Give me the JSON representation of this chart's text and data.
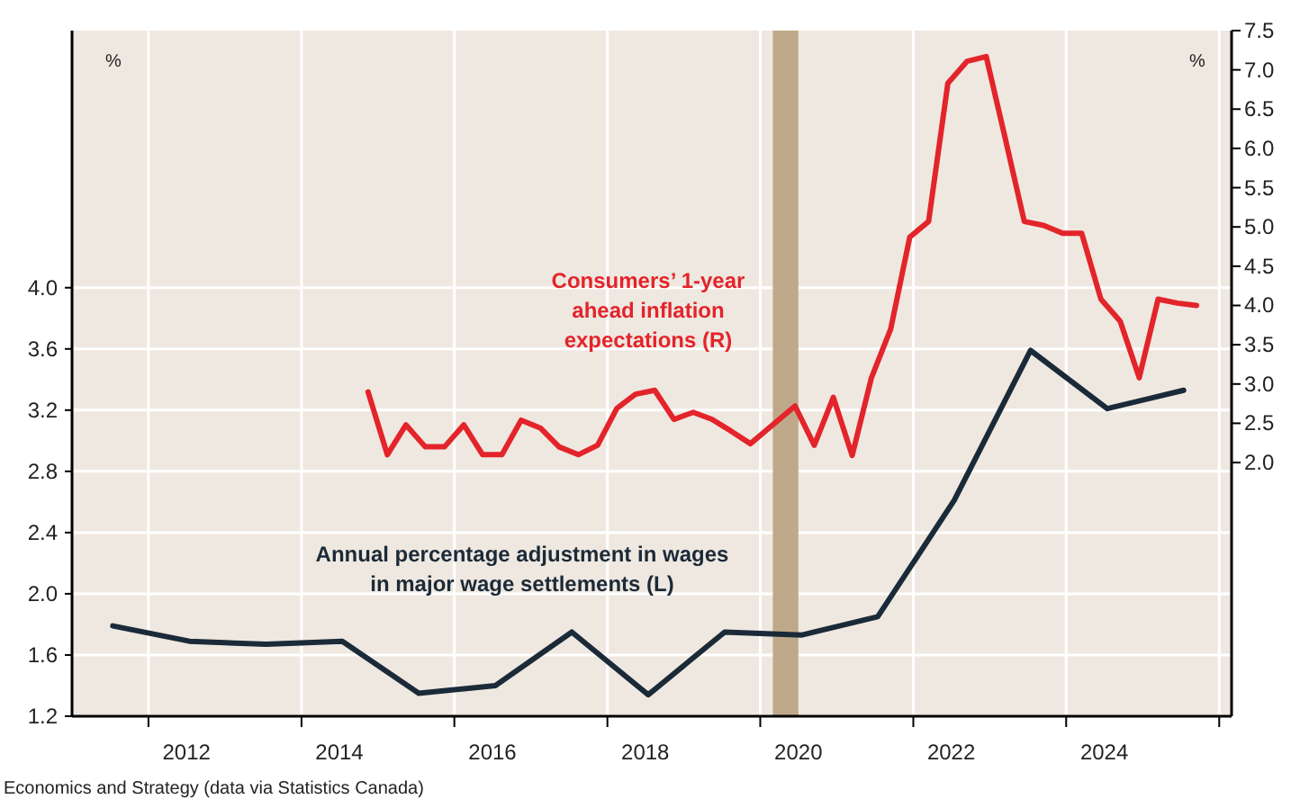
{
  "chart_data": {
    "type": "line",
    "ylabel": "%",
    "y2label": "%",
    "annotations": [
      "Economics and Strategy (data via Statistics Canada)"
    ],
    "xlim": [
      "2011-01-01",
      "2026-03-01"
    ],
    "xticks": [
      {
        "value": "2012-01-01",
        "label": null
      },
      {
        "value": "2014-01-01",
        "label": null
      },
      {
        "value": "2016-01-01",
        "label": null
      },
      {
        "value": "2018-01-01",
        "label": null
      },
      {
        "value": "2020-01-01",
        "label": null
      },
      {
        "value": "2022-01-01",
        "label": null
      },
      {
        "value": "2024-01-01",
        "label": null
      },
      {
        "value": "2026-01-01",
        "label": null
      },
      {
        "value": "2012-07-01",
        "label": "2012"
      },
      {
        "value": "2014-07-01",
        "label": "2014"
      },
      {
        "value": "2016-07-01",
        "label": "2016"
      },
      {
        "value": "2018-07-01",
        "label": "2018"
      },
      {
        "value": "2020-07-01",
        "label": "2020"
      },
      {
        "value": "2022-07-01",
        "label": "2022"
      },
      {
        "value": "2024-07-01",
        "label": "2024"
      }
    ],
    "ylim": [
      1.2,
      5.68
    ],
    "yticks": [
      {
        "value": 1.2,
        "label": "1.2"
      },
      {
        "value": 1.6,
        "label": "1.6"
      },
      {
        "value": 2.0,
        "label": "2.0"
      },
      {
        "value": 2.4,
        "label": "2.4"
      },
      {
        "value": 2.8,
        "label": "2.8"
      },
      {
        "value": 3.2,
        "label": "3.2"
      },
      {
        "value": 3.6,
        "label": "3.6"
      },
      {
        "value": 4.0,
        "label": "4.0"
      }
    ],
    "y2lim": [
      -1.23,
      7.5
    ],
    "y2ticks": [
      {
        "value": 2.0,
        "label": "2.0"
      },
      {
        "value": 2.5,
        "label": "2.5"
      },
      {
        "value": 3.0,
        "label": "3.0"
      },
      {
        "value": 3.5,
        "label": "3.5"
      },
      {
        "value": 4.0,
        "label": "4.0"
      },
      {
        "value": 4.5,
        "label": "4.5"
      },
      {
        "value": 5.0,
        "label": "5.0"
      },
      {
        "value": 5.5,
        "label": "5.5"
      },
      {
        "value": 6.0,
        "label": "6.0"
      },
      {
        "value": 6.5,
        "label": "6.5"
      },
      {
        "value": 7.0,
        "label": "7.0"
      },
      {
        "value": 7.5,
        "label": "7.5"
      }
    ],
    "grid": true,
    "marker": "none",
    "line_style": "solid",
    "bands": [
      {
        "axis": "x",
        "from": "2020-03-01",
        "to": "2020-07-01",
        "color": "#bfa98a"
      }
    ],
    "series": [
      {
        "name": "Annual percentage adjustment in wages in major wage settlements (L)",
        "color": "#1b2a38",
        "x": [
          "2011-07",
          "2012-07",
          "2013-07",
          "2014-07",
          "2015-07",
          "2016-07",
          "2017-07",
          "2018-07",
          "2019-07",
          "2020-07",
          "2021-07",
          "2022-07",
          "2023-07",
          "2024-07",
          "2025-07"
        ],
        "values": [
          1.79,
          1.69,
          1.67,
          1.69,
          1.35,
          1.4,
          1.75,
          1.34,
          1.75,
          1.73,
          1.85,
          2.61,
          3.59,
          3.21,
          3.33
        ]
      },
      {
        "name": "Consumers’ 1-year ahead inflation expectations (R)",
        "color": "#e3242b",
        "axis": "y2",
        "x": [
          "2014-11",
          "2015-02",
          "2015-05",
          "2015-08",
          "2015-11",
          "2016-02",
          "2016-05",
          "2016-08",
          "2016-11",
          "2017-02",
          "2017-05",
          "2017-08",
          "2017-11",
          "2018-02",
          "2018-05",
          "2018-08",
          "2018-11",
          "2019-02",
          "2019-05",
          "2019-08",
          "2019-11",
          "2020-06",
          "2020-09",
          "2020-12",
          "2021-03",
          "2021-06",
          "2021-09",
          "2021-12",
          "2022-03",
          "2022-06",
          "2022-09",
          "2022-12",
          "2023-03",
          "2023-06",
          "2023-09",
          "2023-12",
          "2024-03",
          "2024-06",
          "2024-09",
          "2024-12",
          "2025-03",
          "2025-06",
          "2025-09"
        ],
        "values": [
          2.9,
          2.1,
          2.48,
          2.2,
          2.2,
          2.48,
          2.1,
          2.1,
          2.54,
          2.44,
          2.2,
          2.1,
          2.22,
          2.69,
          2.87,
          2.92,
          2.55,
          2.64,
          2.55,
          2.4,
          2.24,
          2.72,
          2.22,
          2.83,
          2.09,
          3.08,
          3.7,
          4.87,
          5.07,
          6.83,
          7.11,
          7.17,
          6.14,
          5.07,
          5.02,
          4.92,
          4.92,
          4.08,
          3.8,
          3.08,
          4.08,
          4.03,
          4.0
        ]
      }
    ]
  }
}
